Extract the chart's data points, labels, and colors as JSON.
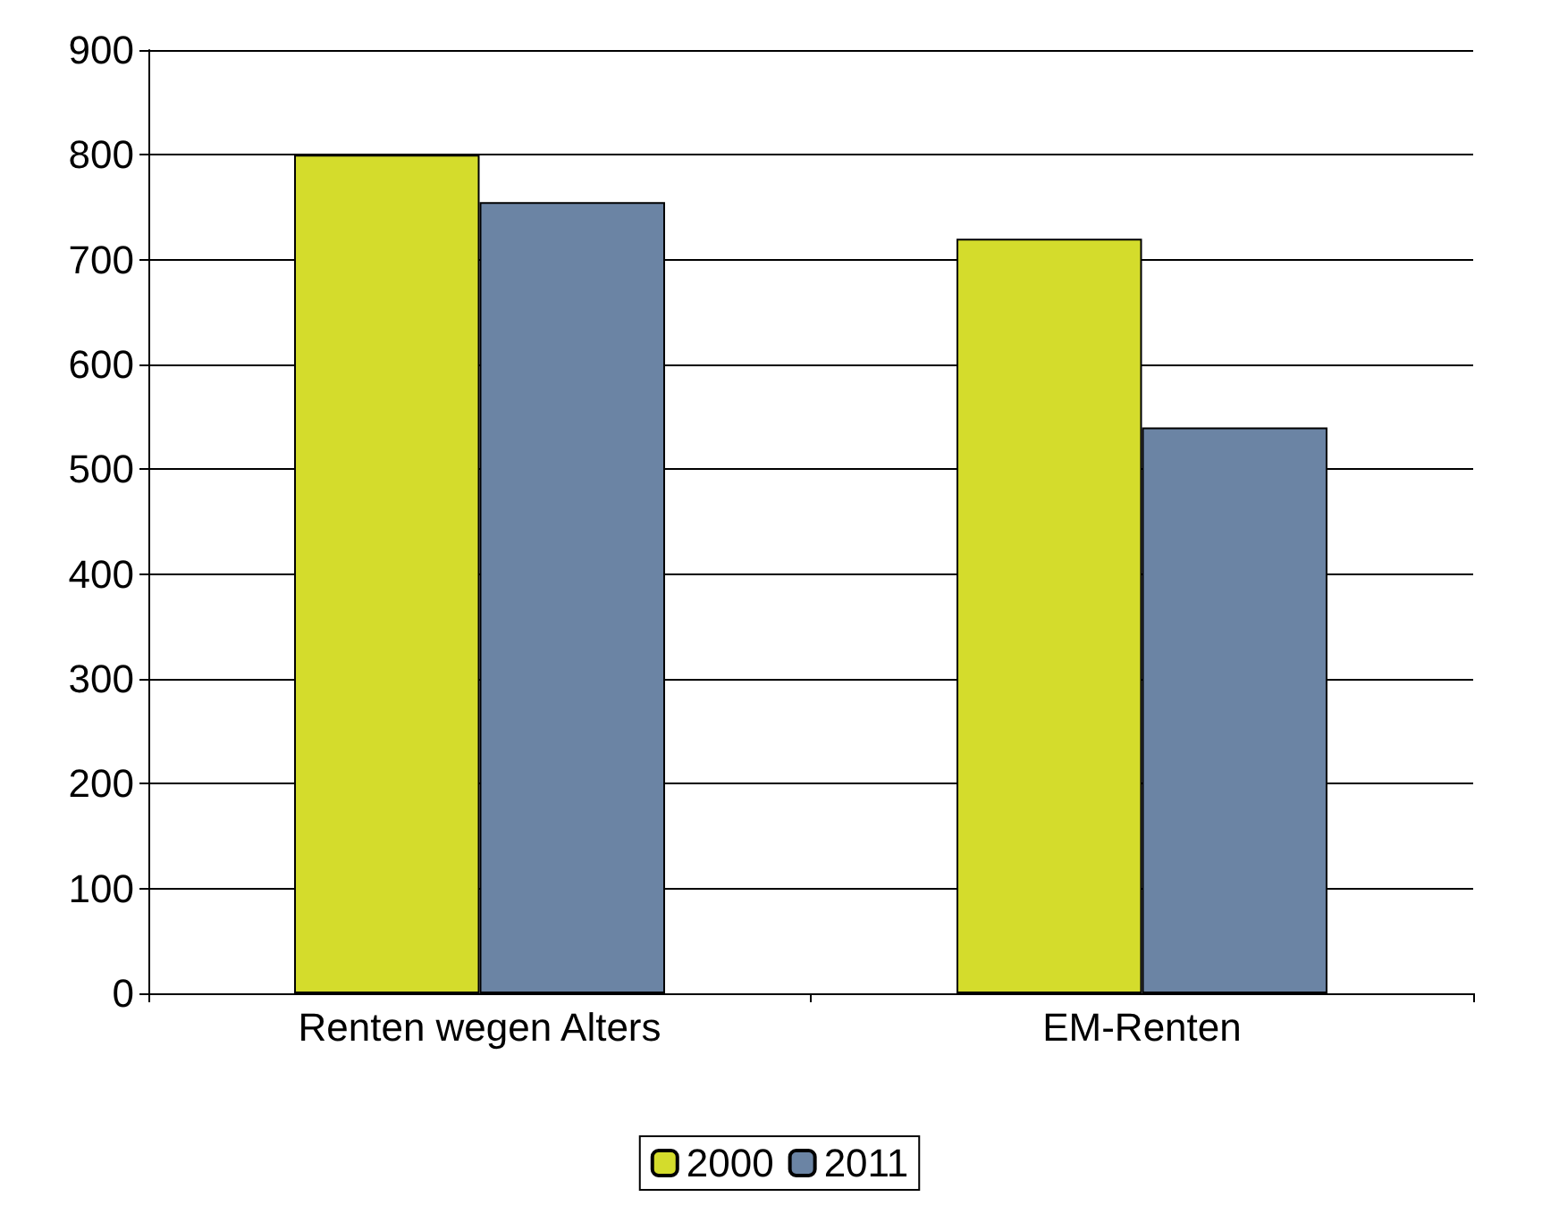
{
  "chart_data": {
    "type": "bar",
    "categories": [
      "Renten wegen Alters",
      "EM-Renten"
    ],
    "series": [
      {
        "name": "2000",
        "color": "#d4dc2c",
        "values": [
          800,
          720
        ]
      },
      {
        "name": "2011",
        "color": "#6b84a4",
        "values": [
          755,
          540
        ]
      }
    ],
    "ylim": [
      0,
      900
    ],
    "yticks": [
      0,
      100,
      200,
      300,
      400,
      500,
      600,
      700,
      800,
      900
    ],
    "grid": "y",
    "legend": "bottom"
  }
}
